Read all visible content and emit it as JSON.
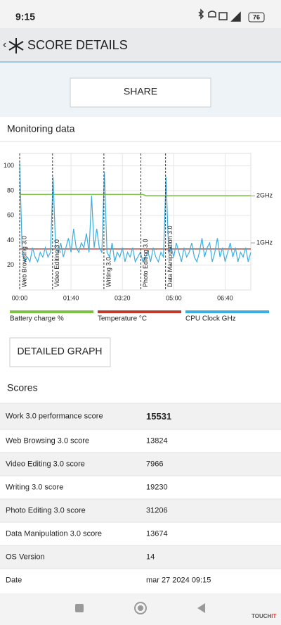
{
  "status_bar": {
    "time": "9:15",
    "battery": "76"
  },
  "header": {
    "title": "SCORE DETAILS"
  },
  "buttons": {
    "share": "SHARE",
    "detailed_graph": "DETAILED GRAPH"
  },
  "monitoring": {
    "title": "Monitoring data"
  },
  "chart_data": {
    "type": "line",
    "x": [
      0,
      5,
      10,
      15,
      20,
      25,
      30,
      35,
      40,
      45,
      50,
      55,
      60,
      65,
      70,
      75,
      80,
      85,
      90,
      95,
      100,
      105,
      110,
      115,
      120,
      125,
      130,
      135,
      140,
      145,
      150,
      155,
      160,
      165,
      170,
      175,
      180,
      185,
      190,
      195,
      200,
      205,
      210,
      215,
      220,
      225,
      230,
      235,
      240,
      245,
      250,
      255,
      260,
      265,
      270,
      275,
      280,
      285,
      290,
      295,
      300,
      305,
      310,
      315,
      320,
      325,
      330,
      335,
      340,
      345,
      350,
      355,
      360,
      365,
      370,
      375,
      380,
      385,
      390,
      395,
      400,
      405,
      410,
      415,
      420,
      425,
      430,
      435,
      440,
      445,
      450
    ],
    "xlim": [
      0,
      450
    ],
    "xticks": [
      {
        "value": 0,
        "label": "00:00"
      },
      {
        "value": 100,
        "label": "01:40"
      },
      {
        "value": 200,
        "label": "03:20"
      },
      {
        "value": 300,
        "label": "05:00"
      },
      {
        "value": 400,
        "label": "06:40"
      }
    ],
    "ylim": [
      0,
      110
    ],
    "yticks": [
      20,
      40,
      60,
      80,
      100
    ],
    "y2lim": [
      0,
      2.9
    ],
    "y2ticks": [
      {
        "value": 1,
        "label": "1GHz"
      },
      {
        "value": 2,
        "label": "2GHz"
      }
    ],
    "grid": true,
    "annotations": [
      {
        "x": 0,
        "label": "Web Browsing 3.0"
      },
      {
        "x": 64,
        "label": "Video Editing 3.0"
      },
      {
        "x": 164,
        "label": "Writing 3.0"
      },
      {
        "x": 236,
        "label": "Photo Editing 3.0"
      },
      {
        "x": 284,
        "label": "Data Manipulation 3.0"
      }
    ],
    "series": [
      {
        "name": "Battery charge %",
        "color": "#7cc242",
        "values": [
          77,
          77,
          77,
          77,
          77,
          77,
          77,
          77,
          77,
          77,
          77,
          77,
          77,
          77,
          77,
          77,
          77,
          77,
          77,
          77,
          77,
          77,
          77,
          77,
          77,
          77,
          77,
          77,
          77,
          77,
          77,
          77,
          77,
          77,
          77,
          77,
          77,
          77,
          77,
          77,
          77,
          77,
          77,
          77,
          77,
          77,
          77,
          77,
          77,
          76,
          76,
          76,
          76,
          76,
          76,
          76,
          76,
          76,
          76,
          76,
          76,
          76,
          76,
          76,
          76,
          76,
          76,
          76,
          76,
          76,
          76,
          76,
          76,
          76,
          76,
          76,
          76,
          76,
          76,
          76,
          76,
          76,
          76,
          76,
          76,
          76,
          76,
          76,
          76,
          76,
          76
        ]
      },
      {
        "name": "Temperature °C",
        "color": "#c0392b",
        "values": [
          33,
          33,
          33,
          33,
          33,
          33,
          33,
          33,
          33,
          33,
          33,
          33,
          33,
          33,
          33,
          33,
          33,
          33,
          33,
          33,
          33,
          33,
          33,
          33,
          33,
          33,
          33,
          33,
          33,
          33,
          33,
          33,
          33,
          33,
          33,
          33,
          33,
          33,
          33,
          33,
          33,
          33,
          33,
          33,
          33,
          33,
          33,
          33,
          33,
          33,
          33,
          33,
          33,
          33,
          33,
          33,
          33,
          33,
          33,
          33,
          33,
          33,
          33,
          33,
          33,
          33,
          33,
          33,
          33,
          33,
          33,
          33,
          33,
          33,
          33,
          33,
          33,
          33,
          33,
          33,
          33,
          33,
          33,
          33,
          33,
          33,
          33,
          33,
          33,
          33,
          33
        ]
      },
      {
        "name": "CPU Clock GHz",
        "color": "#3aaee0",
        "axis": "y2",
        "values": [
          2.7,
          0.8,
          0.6,
          0.7,
          0.6,
          0.9,
          0.7,
          0.6,
          0.8,
          0.7,
          0.9,
          0.7,
          0.8,
          2.4,
          0.9,
          0.8,
          1.0,
          0.7,
          0.9,
          1.1,
          0.8,
          1.3,
          0.9,
          0.8,
          1.0,
          0.9,
          1.2,
          0.8,
          2.0,
          0.9,
          1.3,
          0.9,
          0.8,
          2.5,
          0.8,
          0.7,
          1.0,
          0.6,
          0.8,
          0.7,
          0.9,
          0.6,
          0.8,
          0.7,
          0.9,
          0.6,
          0.7,
          0.8,
          0.6,
          0.7,
          0.8,
          0.6,
          0.9,
          0.7,
          0.6,
          0.8,
          0.7,
          2.4,
          0.8,
          0.9,
          0.7,
          1.0,
          0.8,
          0.6,
          0.9,
          0.7,
          0.8,
          1.0,
          0.7,
          0.6,
          0.8,
          1.1,
          0.7,
          0.9,
          1.0,
          0.6,
          0.8,
          1.1,
          0.7,
          0.9,
          0.6,
          0.8,
          1.0,
          0.7,
          0.9,
          0.6,
          0.8,
          0.7,
          0.9,
          0.6,
          0.8
        ]
      }
    ]
  },
  "scores": {
    "title": "Scores",
    "rows": [
      [
        "Work 3.0 performance score",
        15531
      ],
      [
        "Web Browsing 3.0 score",
        13824
      ],
      [
        "Video Editing 3.0 score",
        7966
      ],
      [
        "Writing 3.0 score",
        19230
      ],
      [
        "Photo Editing 3.0 score",
        31206
      ],
      [
        "Data Manipulation 3.0 score",
        13674
      ],
      [
        "OS Version",
        14
      ],
      [
        "Date",
        "mar 27 2024 09:15"
      ]
    ]
  },
  "watermark": [
    "TOUCH",
    "IT"
  ]
}
